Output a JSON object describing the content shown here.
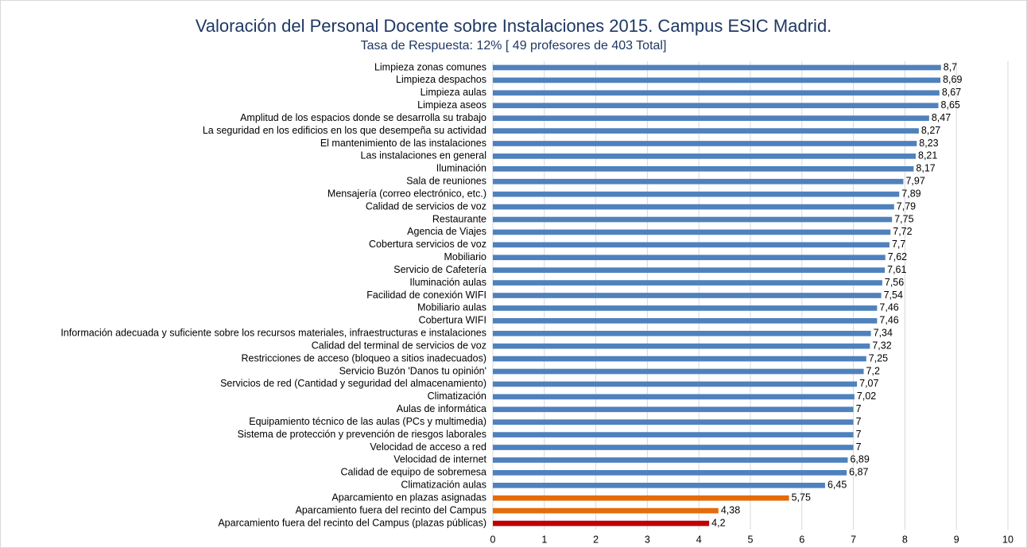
{
  "chart_data": {
    "type": "barh",
    "title": "Valoración del Personal Docente sobre Instalaciones 2015. Campus ESIC Madrid.",
    "subtitle": "Tasa de Respuesta: 12% [ 49 profesores de 403 Total]",
    "categories": [
      "Limpieza zonas comunes",
      "Limpieza despachos",
      "Limpieza aulas",
      "Limpieza aseos",
      "Amplitud de los espacios donde se desarrolla su trabajo",
      "La seguridad en los edificios en los que desempeña su actividad",
      "El mantenimiento de las instalaciones",
      "Las instalaciones en general",
      "Iluminación",
      "Sala de reuniones",
      "Mensajería (correo electrónico, etc.)",
      "Calidad de servicios de voz",
      "Restaurante",
      "Agencia de Viajes",
      "Cobertura servicios de voz",
      "Mobiliario",
      "Servicio de Cafetería",
      "Iluminación aulas",
      "Facilidad de conexión WIFI",
      "Mobiliario aulas",
      "Cobertura WIFI",
      "Información adecuada y suficiente sobre los recursos materiales, infraestructuras e instalaciones",
      "Calidad del terminal de servicios de voz",
      "Restricciones de acceso (bloqueo a sitios inadecuados)",
      "Servicio Buzón 'Danos tu opinión'",
      "Servicios de red (Cantidad y seguridad del almacenamiento)",
      "Climatización",
      "Aulas de informática",
      "Equipamiento técnico de las aulas (PCs y multimedia)",
      "Sistema de protección y prevención de riesgos laborales",
      "Velocidad de acceso a red",
      "Velocidad de internet",
      "Calidad de equipo de sobremesa",
      "Climatización aulas",
      "Aparcamiento en plazas asignadas",
      "Aparcamiento fuera del recinto del Campus",
      "Aparcamiento fuera del recinto del Campus (plazas públicas)"
    ],
    "values": [
      8.7,
      8.69,
      8.67,
      8.65,
      8.47,
      8.27,
      8.23,
      8.21,
      8.17,
      7.97,
      7.89,
      7.79,
      7.75,
      7.72,
      7.7,
      7.62,
      7.61,
      7.56,
      7.54,
      7.46,
      7.46,
      7.34,
      7.32,
      7.25,
      7.2,
      7.07,
      7.02,
      7,
      7,
      7,
      7,
      6.89,
      6.87,
      6.45,
      5.75,
      4.38,
      4.2
    ],
    "value_labels": [
      "8,7",
      "8,69",
      "8,67",
      "8,65",
      "8,47",
      "8,27",
      "8,23",
      "8,21",
      "8,17",
      "7,97",
      "7,89",
      "7,79",
      "7,75",
      "7,72",
      "7,7",
      "7,62",
      "7,61",
      "7,56",
      "7,54",
      "7,46",
      "7,46",
      "7,34",
      "7,32",
      "7,25",
      "7,2",
      "7,07",
      "7,02",
      "7",
      "7",
      "7",
      "7",
      "6,89",
      "6,87",
      "6,45",
      "5,75",
      "4,38",
      "4,2"
    ],
    "colors": [
      "#4f81bd",
      "#4f81bd",
      "#4f81bd",
      "#4f81bd",
      "#4f81bd",
      "#4f81bd",
      "#4f81bd",
      "#4f81bd",
      "#4f81bd",
      "#4f81bd",
      "#4f81bd",
      "#4f81bd",
      "#4f81bd",
      "#4f81bd",
      "#4f81bd",
      "#4f81bd",
      "#4f81bd",
      "#4f81bd",
      "#4f81bd",
      "#4f81bd",
      "#4f81bd",
      "#4f81bd",
      "#4f81bd",
      "#4f81bd",
      "#4f81bd",
      "#4f81bd",
      "#4f81bd",
      "#4f81bd",
      "#4f81bd",
      "#4f81bd",
      "#4f81bd",
      "#4f81bd",
      "#4f81bd",
      "#4f81bd",
      "#e46c0a",
      "#e46c0a",
      "#c00000"
    ],
    "xlim": [
      0,
      10
    ],
    "xticks": [
      0,
      1,
      2,
      3,
      4,
      5,
      6,
      7,
      8,
      9,
      10
    ],
    "grid": true
  }
}
